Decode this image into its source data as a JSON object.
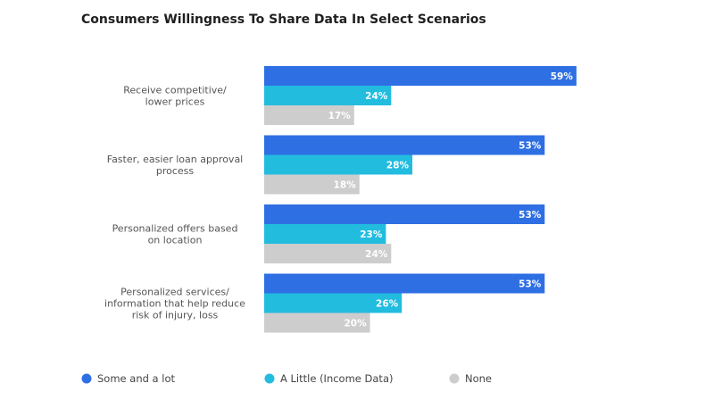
{
  "chart_data": {
    "type": "bar",
    "orientation": "horizontal",
    "title": "Consumers Willingness To Share Data In Select Scenarios",
    "categories": [
      [
        "Receive competitive/",
        "lower prices"
      ],
      [
        "Faster, easier loan approval",
        "process"
      ],
      [
        "Personalized offers based",
        "on location"
      ],
      [
        "Personalized services/",
        "information that help reduce",
        "risk of injury, loss"
      ]
    ],
    "series": [
      {
        "name": "Some and a lot",
        "color": "#2f6fe4",
        "values": [
          59,
          53,
          53,
          53
        ]
      },
      {
        "name": "A Little (Income Data)",
        "color": "#22bcdf",
        "values": [
          24,
          28,
          23,
          26
        ]
      },
      {
        "name": "None",
        "color": "#cdcdcd",
        "values": [
          17,
          18,
          24,
          20
        ]
      }
    ],
    "value_suffix": "%",
    "xlim": [
      0,
      100
    ],
    "grid": false,
    "legend": "bottom",
    "xlabel": "",
    "ylabel": ""
  }
}
